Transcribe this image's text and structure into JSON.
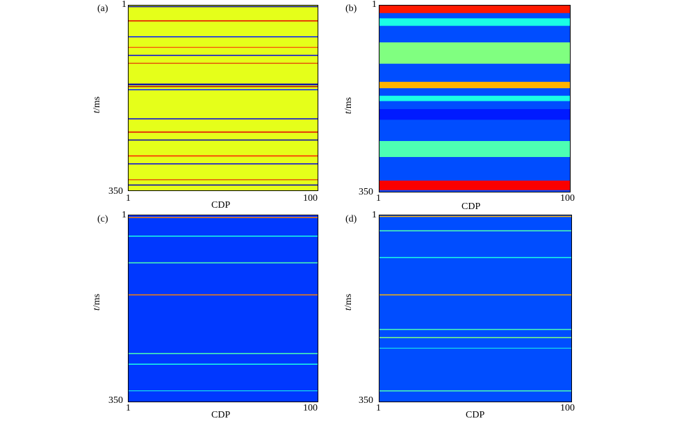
{
  "colors": {
    "jet_dark_blue": "#00008f",
    "jet_blue": "#0040ff",
    "jet_cyan": "#40ffff",
    "jet_yellow_green": "#c8ff37",
    "jet_yellow": "#ffff00",
    "jet_red": "#ff0000",
    "jet_dark_red": "#800000"
  },
  "chart_data": [
    {
      "type": "heatmap",
      "panel_label": "(a)",
      "xlabel": "CDP",
      "ylabel_italic": "t",
      "ylabel_rest": "/ms",
      "x_ticks": [
        "1",
        "100"
      ],
      "y_ticks": [
        "1",
        "350"
      ],
      "xlim": [
        1,
        100
      ],
      "ylim": [
        1,
        350
      ],
      "colormap": "jet",
      "background_level": 0.6,
      "bands": [
        {
          "t": 3,
          "level": 0.05,
          "thickness": 2
        },
        {
          "t": 30,
          "level": 0.9,
          "thickness": 2
        },
        {
          "t": 60,
          "level": 0.15,
          "thickness": 2
        },
        {
          "t": 80,
          "level": 0.85,
          "thickness": 1
        },
        {
          "t": 95,
          "level": 0.1,
          "thickness": 2
        },
        {
          "t": 110,
          "level": 0.9,
          "thickness": 1
        },
        {
          "t": 150,
          "level": 0.05,
          "thickness": 3
        },
        {
          "t": 154,
          "level": 0.95,
          "thickness": 2
        },
        {
          "t": 160,
          "level": 0.15,
          "thickness": 2
        },
        {
          "t": 215,
          "level": 0.1,
          "thickness": 2
        },
        {
          "t": 240,
          "level": 0.9,
          "thickness": 2
        },
        {
          "t": 255,
          "level": 0.05,
          "thickness": 2
        },
        {
          "t": 285,
          "level": 0.85,
          "thickness": 2
        },
        {
          "t": 300,
          "level": 0.1,
          "thickness": 2
        },
        {
          "t": 330,
          "level": 0.9,
          "thickness": 1
        },
        {
          "t": 340,
          "level": 0.05,
          "thickness": 2
        }
      ]
    },
    {
      "type": "heatmap",
      "panel_label": "(b)",
      "xlabel": "CDP",
      "ylabel_italic": "t",
      "ylabel_rest": "/ms",
      "x_ticks": [
        "1",
        "100"
      ],
      "y_ticks": [
        "1",
        "350"
      ],
      "xlim": [
        1,
        100
      ],
      "ylim": [
        1,
        350
      ],
      "colormap": "jet",
      "background_level": 0.2,
      "bands": [
        {
          "t": 8,
          "level": 0.85,
          "thickness": 14
        },
        {
          "t": 32,
          "level": 0.4,
          "thickness": 14
        },
        {
          "t": 90,
          "level": 0.5,
          "thickness": 40
        },
        {
          "t": 150,
          "level": 0.7,
          "thickness": 12
        },
        {
          "t": 175,
          "level": 0.4,
          "thickness": 10
        },
        {
          "t": 205,
          "level": 0.15,
          "thickness": 20
        },
        {
          "t": 270,
          "level": 0.45,
          "thickness": 30
        },
        {
          "t": 338,
          "level": 0.88,
          "thickness": 18
        }
      ]
    },
    {
      "type": "heatmap",
      "panel_label": "(c)",
      "xlabel": "CDP",
      "ylabel_italic": "t",
      "ylabel_rest": "/ms",
      "x_ticks": [
        "1",
        "100"
      ],
      "y_ticks": [
        "1",
        "350"
      ],
      "xlim": [
        1,
        100
      ],
      "ylim": [
        1,
        350
      ],
      "colormap": "jet",
      "background_level": 0.18,
      "bands": [
        {
          "t": 5,
          "level": 0.75,
          "thickness": 2
        },
        {
          "t": 40,
          "level": 0.4,
          "thickness": 2
        },
        {
          "t": 90,
          "level": 0.45,
          "thickness": 2
        },
        {
          "t": 150,
          "level": 0.75,
          "thickness": 2
        },
        {
          "t": 260,
          "level": 0.45,
          "thickness": 2
        },
        {
          "t": 280,
          "level": 0.4,
          "thickness": 2
        },
        {
          "t": 330,
          "level": 0.4,
          "thickness": 1
        }
      ]
    },
    {
      "type": "heatmap",
      "panel_label": "(d)",
      "xlabel": "CDP",
      "ylabel_italic": "t",
      "ylabel_rest": "/ms",
      "x_ticks": [
        "1",
        "100"
      ],
      "y_ticks": [
        "1",
        "350"
      ],
      "xlim": [
        1,
        100
      ],
      "ylim": [
        1,
        350
      ],
      "colormap": "jet",
      "background_level": 0.2,
      "bands": [
        {
          "t": 3,
          "level": 0.7,
          "thickness": 2
        },
        {
          "t": 30,
          "level": 0.45,
          "thickness": 2
        },
        {
          "t": 80,
          "level": 0.4,
          "thickness": 2
        },
        {
          "t": 150,
          "level": 0.7,
          "thickness": 2
        },
        {
          "t": 215,
          "level": 0.45,
          "thickness": 2
        },
        {
          "t": 230,
          "level": 0.5,
          "thickness": 2
        },
        {
          "t": 250,
          "level": 0.4,
          "thickness": 1
        },
        {
          "t": 330,
          "level": 0.45,
          "thickness": 2
        }
      ]
    }
  ]
}
